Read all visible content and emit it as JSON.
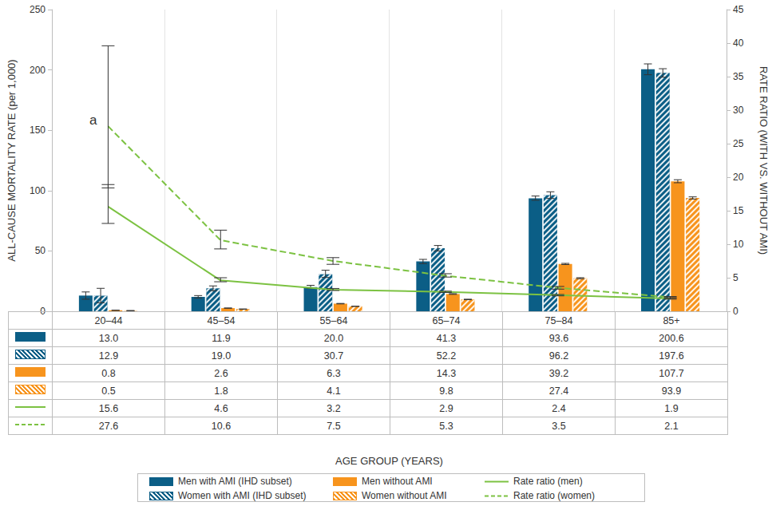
{
  "chart_data": {
    "type": "bar",
    "categories": [
      "20–44",
      "45–54",
      "55–64",
      "65–74",
      "75–84",
      "85+"
    ],
    "ylabel": "ALL-CAUSE MORTALITY RATE (per 1,000)",
    "y2label": "RATE RATIO (WITH VS. WITHOUT AMI)",
    "xlabel": "AGE GROUP (YEARS)",
    "ylim": [
      0,
      250
    ],
    "yticks": [
      0,
      50,
      100,
      150,
      200,
      250
    ],
    "y2lim": [
      0,
      45
    ],
    "y2ticks": [
      0,
      5,
      10,
      15,
      20,
      25,
      30,
      35,
      40,
      45
    ],
    "grid": true,
    "legend": "bottom",
    "series": [
      {
        "name": "Men with AMI (IHD subset)",
        "type": "bar",
        "color": "#0b5e86",
        "values": [
          13.0,
          11.9,
          20.0,
          41.3,
          93.6,
          200.6
        ],
        "value_labels": [
          "13.0",
          "11.9",
          "20.0",
          "41.3",
          "93.6",
          "200.6"
        ],
        "error_bars": [
          [
            10.0,
            16.0
          ],
          [
            11.0,
            13.0
          ],
          [
            19.0,
            21.5
          ],
          [
            39.5,
            43.0
          ],
          [
            92.0,
            95.5
          ],
          [
            196.0,
            205.0
          ]
        ]
      },
      {
        "name": "Women with AMI (IHD subset)",
        "type": "bar",
        "color": "#0b5e86",
        "values": [
          12.9,
          19.0,
          30.7,
          52.2,
          96.2,
          197.6
        ],
        "value_labels": [
          "12.9",
          "19.0",
          "30.7",
          "52.2",
          "96.2",
          "197.6"
        ],
        "error_bars": [
          [
            7.0,
            19.0
          ],
          [
            17.0,
            21.0
          ],
          [
            28.0,
            34.0
          ],
          [
            50.0,
            54.5
          ],
          [
            93.5,
            99.0
          ],
          [
            194.0,
            201.0
          ]
        ]
      },
      {
        "name": "Men without AMI",
        "type": "bar",
        "color": "#f7941d",
        "values": [
          0.8,
          2.6,
          6.3,
          14.3,
          39.2,
          107.7
        ],
        "value_labels": [
          "0.8",
          "2.6",
          "6.3",
          "14.3",
          "39.2",
          "107.7"
        ],
        "error_bars": [
          [
            0.7,
            0.9
          ],
          [
            2.5,
            2.7
          ],
          [
            6.1,
            6.5
          ],
          [
            14.0,
            14.6
          ],
          [
            38.7,
            39.7
          ],
          [
            106.5,
            109.0
          ]
        ]
      },
      {
        "name": "Women without AMI",
        "type": "bar",
        "color": "#f7941d",
        "values": [
          0.5,
          1.8,
          4.1,
          9.8,
          27.4,
          93.9
        ],
        "value_labels": [
          "0.5",
          "1.8",
          "4.1",
          "9.8",
          "27.4",
          "93.9"
        ],
        "error_bars": [
          [
            0.4,
            0.6
          ],
          [
            1.7,
            1.9
          ],
          [
            4.0,
            4.2
          ],
          [
            9.6,
            10.0
          ],
          [
            27.0,
            27.8
          ],
          [
            93.0,
            94.8
          ]
        ]
      },
      {
        "name": "Rate ratio (men)",
        "type": "line",
        "axis": "y2",
        "color": "#7cc242",
        "line_style": "solid",
        "marker": "none",
        "values": [
          15.6,
          4.6,
          3.2,
          2.9,
          2.4,
          1.9
        ],
        "value_labels": [
          "15.6",
          "4.6",
          "3.2",
          "2.9",
          "2.4",
          "1.9"
        ],
        "error_bars": [
          [
            13.1,
            18.9
          ],
          [
            4.4,
            5.0
          ],
          [
            3.1,
            3.4
          ],
          [
            2.8,
            3.0
          ],
          [
            2.3,
            2.5
          ],
          [
            1.8,
            2.0
          ]
        ]
      },
      {
        "name": "Rate ratio (women)",
        "type": "line",
        "axis": "y2",
        "color": "#7cc242",
        "line_style": "dashed",
        "marker": "none",
        "values": [
          27.6,
          10.6,
          7.5,
          5.3,
          3.5,
          2.1
        ],
        "value_labels": [
          "27.6",
          "10.6",
          "7.5",
          "5.3",
          "3.5",
          "2.1"
        ],
        "error_bars": [
          [
            18.4,
            39.6
          ],
          [
            9.3,
            12.1
          ],
          [
            7.0,
            8.0
          ],
          [
            5.1,
            5.6
          ],
          [
            3.3,
            3.7
          ],
          [
            2.0,
            2.2
          ]
        ]
      }
    ],
    "annotations": [
      {
        "text": "a",
        "series": "Rate ratio (women)",
        "category": "20–44"
      }
    ]
  }
}
